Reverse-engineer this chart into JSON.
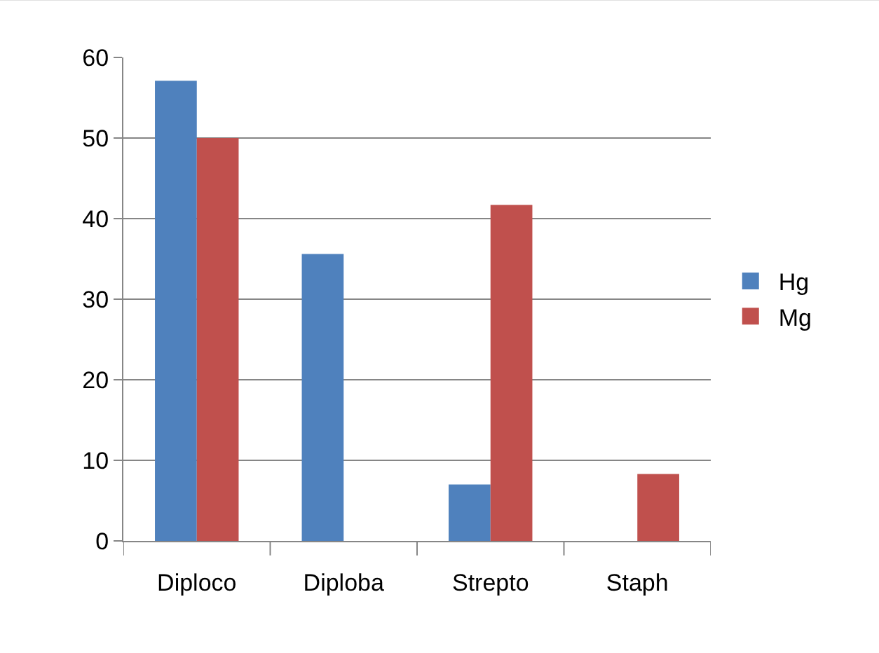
{
  "chart_data": {
    "type": "bar",
    "categories": [
      "Diploco",
      "Diploba",
      "Strepto",
      "Staph"
    ],
    "series": [
      {
        "name": "Hg",
        "color": "#4f81bd",
        "values": [
          57.1,
          35.6,
          7.0,
          0
        ]
      },
      {
        "name": "Mg",
        "color": "#c0504d",
        "values": [
          50,
          0,
          41.7,
          8.3
        ]
      }
    ],
    "ylim": [
      0,
      60
    ],
    "yticks": [
      0,
      10,
      20,
      30,
      40,
      50,
      60
    ],
    "grid": "y",
    "legend": "right"
  }
}
